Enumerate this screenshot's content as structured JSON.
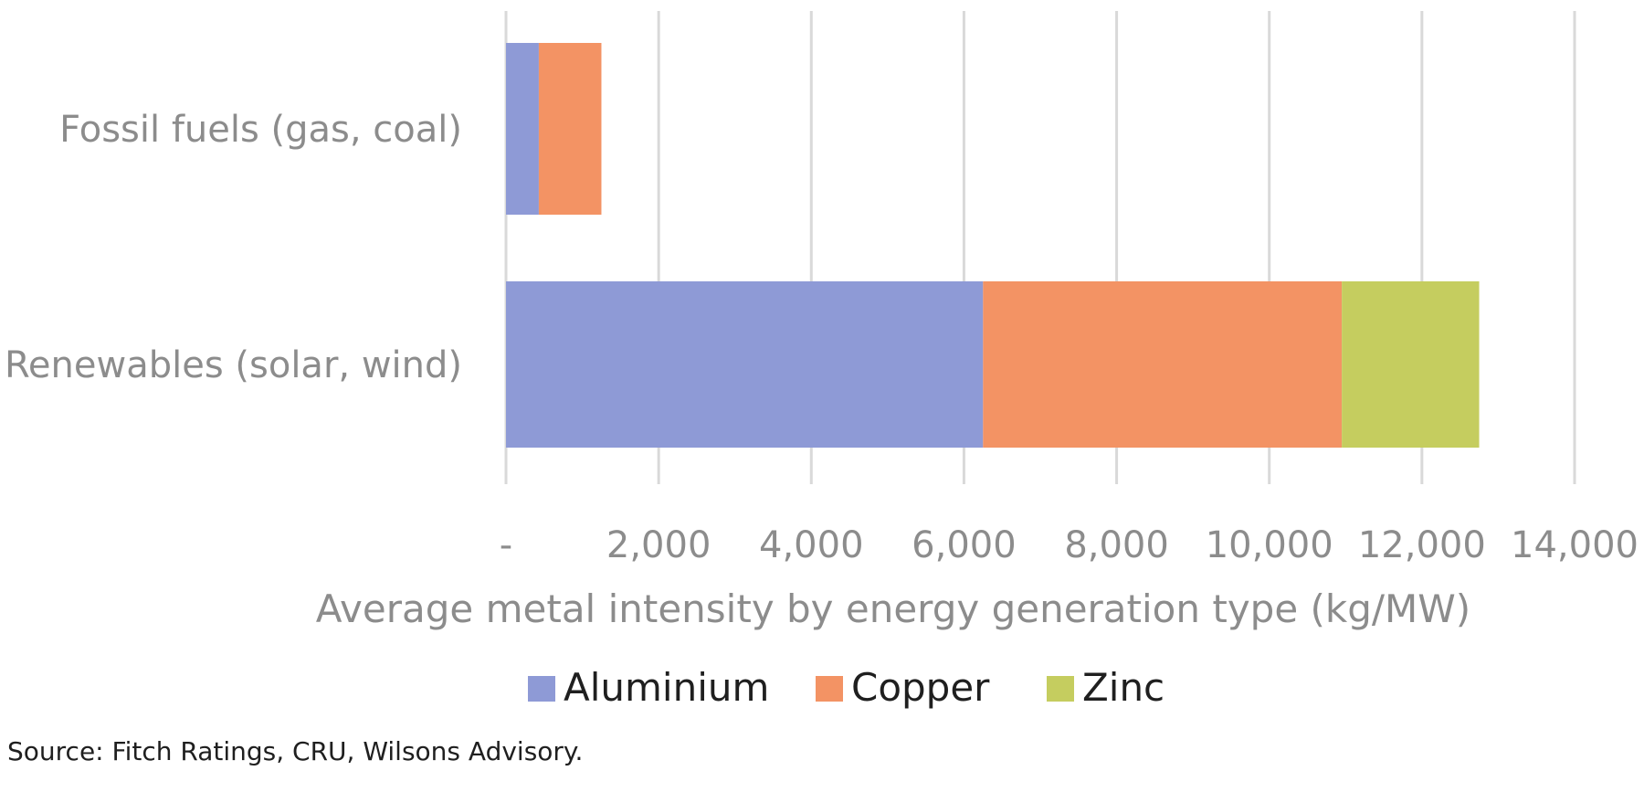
{
  "chart_data": {
    "type": "bar",
    "orientation": "horizontal",
    "stacked": true,
    "categories": [
      "Fossil fuels (gas, coal)",
      "Renewables (solar, wind)"
    ],
    "series": [
      {
        "name": "Aluminium",
        "color": "#8E9AD6",
        "values": [
          430,
          6250
        ]
      },
      {
        "name": "Copper",
        "color": "#F39364",
        "values": [
          820,
          4700
        ]
      },
      {
        "name": "Zinc",
        "color": "#C5CD5F",
        "values": [
          0,
          1800
        ]
      }
    ],
    "xlim": [
      0,
      14000
    ],
    "x_ticks": [
      0,
      2000,
      4000,
      6000,
      8000,
      10000,
      12000,
      14000
    ],
    "x_tick_labels": [
      "-",
      "2,000",
      "4,000",
      "6,000",
      "8,000",
      "10,000",
      "12,000",
      "14,000"
    ],
    "xlabel": "Average metal intensity by energy generation type (kg/MW)",
    "ylabel": "",
    "title": "",
    "grid": "vertical",
    "legend": "bottom",
    "source": "Source: Fitch Ratings, CRU, Wilsons Advisory."
  }
}
